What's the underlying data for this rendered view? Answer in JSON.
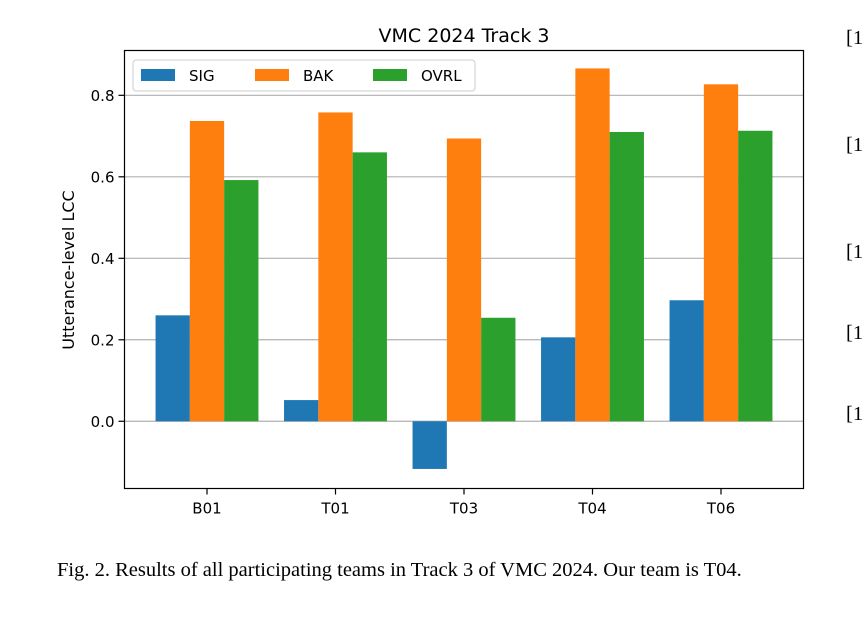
{
  "chart_data": {
    "type": "bar",
    "title": "VMC 2024 Track 3",
    "xlabel": "",
    "ylabel": "Utterance-level LCC",
    "categories": [
      "B01",
      "T01",
      "T03",
      "T04",
      "T06"
    ],
    "series": [
      {
        "name": "SIG",
        "color": "#1f77b4",
        "values": [
          0.26,
          0.052,
          -0.117,
          0.206,
          0.297
        ]
      },
      {
        "name": "BAK",
        "color": "#ff7f0e",
        "values": [
          0.737,
          0.758,
          0.694,
          0.866,
          0.827
        ]
      },
      {
        "name": "OVRL",
        "color": "#2ca02c",
        "values": [
          0.592,
          0.66,
          0.254,
          0.71,
          0.713
        ]
      }
    ],
    "ylim": [
      -0.165,
      0.91
    ],
    "yticks": [
      "0.0",
      "0.2",
      "0.4",
      "0.6",
      "0.8"
    ],
    "grid": "y",
    "legend_placement": "top-left"
  },
  "caption": {
    "text": "Fig. 2.  Results of all participating teams in Track 3 of VMC 2024. Our team is T04."
  },
  "ref_marks": [
    "[1",
    "[1",
    "[1",
    "[1",
    "[1"
  ]
}
